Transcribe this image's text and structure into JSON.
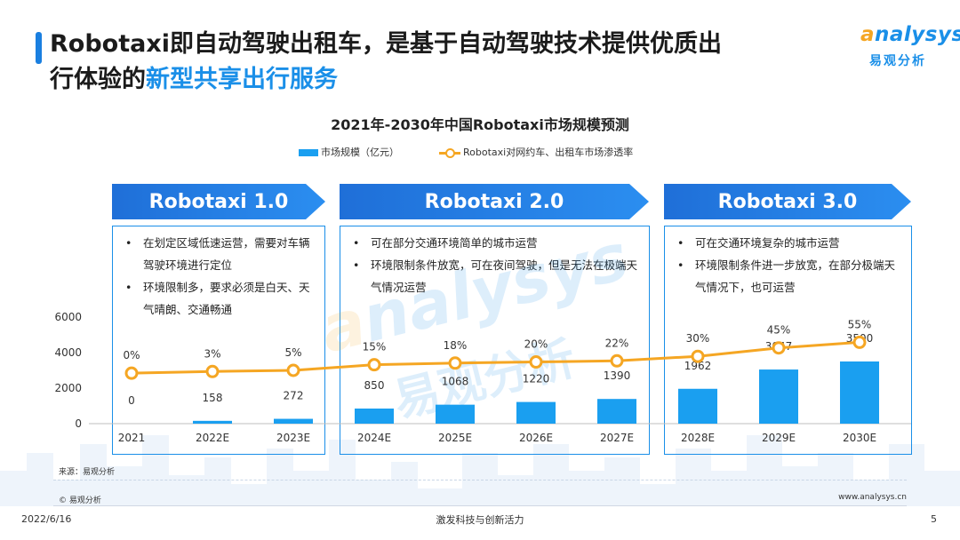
{
  "header": {
    "title_part1": "Robotaxi即自动驾驶出租车，是基于自动驾驶技术提供优质出",
    "title_part2": "行体验的",
    "title_highlight": "新型共享出行服务"
  },
  "logo": {
    "word": "nalysys",
    "word_initial": "a",
    "cn": "易观分析"
  },
  "phases": [
    {
      "name": "Robotaxi 1.0",
      "bullets": [
        "在划定区域低速运营，需要对车辆驾驶环境进行定位",
        "环境限制多，要求必须是白天、天气晴朗、交通畅通"
      ]
    },
    {
      "name": "Robotaxi 2.0",
      "bullets": [
        "可在部分交通环境简单的城市运营",
        "环境限制条件放宽，可在夜间驾驶，但是无法在极端天气情况运营"
      ]
    },
    {
      "name": "Robotaxi 3.0",
      "bullets": [
        "可在交通环境复杂的城市运营",
        "环境限制条件进一步放宽，在部分极端天气情况下，也可运营"
      ]
    }
  ],
  "chart_data": {
    "type": "bar",
    "title": "2021年-2030年中国Robotaxi市场规模预测",
    "categories": [
      "2021",
      "2022E",
      "2023E",
      "2024E",
      "2025E",
      "2026E",
      "2027E",
      "2028E",
      "2029E",
      "2030E"
    ],
    "series": [
      {
        "name": "市场规模（亿元）",
        "type": "bar",
        "axis": "left",
        "values": [
          0,
          158,
          272,
          850,
          1068,
          1220,
          1390,
          1962,
          3047,
          3500
        ],
        "labels": [
          "0",
          "158",
          "272",
          "850",
          "1068",
          "1220",
          "1390",
          "1962",
          "3047",
          "3500"
        ]
      },
      {
        "name": "Robotaxi对网约车、出租车市场渗透率",
        "type": "line",
        "axis": "right",
        "values": [
          0,
          3,
          5,
          15,
          18,
          20,
          22,
          30,
          45,
          55
        ],
        "labels": [
          "0%",
          "3%",
          "5%",
          "15%",
          "18%",
          "20%",
          "22%",
          "30%",
          "45%",
          "55%"
        ]
      }
    ],
    "yticks": [
      "0",
      "2000",
      "4000",
      "6000"
    ],
    "ylim": [
      0,
      6000
    ],
    "y2lim": [
      -90,
      100
    ],
    "colors": {
      "bar": "#1a9ff0",
      "line": "#f5a623"
    },
    "legend_position": "top",
    "grid": false
  },
  "footer": {
    "source": "来源：易观分析",
    "copyright": "© 易观分析",
    "url": "www.analysys.cn",
    "date": "2022/6/16",
    "slogan": "激发科技与创新活力",
    "page": "5"
  }
}
